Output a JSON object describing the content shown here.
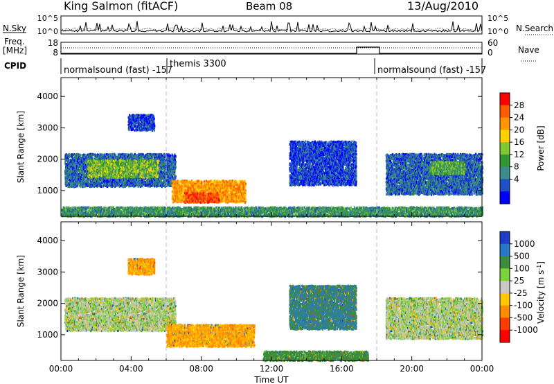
{
  "header": {
    "station": "King Salmon (fitACF)",
    "beam": "Beam 08",
    "date": "13/Aug/2010"
  },
  "top_panels": {
    "nsky_label": "N.Sky",
    "nsky_ticks": [
      "10^5",
      "10^0"
    ],
    "nsearch_label": "N.Search",
    "nsearch_ticks": [
      "10^5",
      "10^0"
    ],
    "freq_label": "Freq.",
    "freq_unit": "[MHz]",
    "freq_ticks": [
      "18",
      "8"
    ],
    "nave_label": "Nave",
    "nave_ticks": [
      "60",
      "0"
    ],
    "cpid_label": "CPID",
    "cpid_segments": [
      {
        "label": "normalsound (fast) -157",
        "start_h": 0,
        "end_h": 6
      },
      {
        "label": "themis 3300",
        "start_h": 6,
        "end_h": 18
      },
      {
        "label": "normalsound (fast) -157",
        "start_h": 18,
        "end_h": 24
      }
    ]
  },
  "power_colorbar": {
    "title": "Power [dB]",
    "ticks": [
      "28",
      "24",
      "20",
      "16",
      "12",
      "8",
      "4"
    ],
    "colors": [
      "#ff0000",
      "#ff5a00",
      "#ff9600",
      "#ffd200",
      "#82c832",
      "#329632",
      "#3c8c8c",
      "#1e50c8",
      "#0000ff"
    ]
  },
  "velocity_colorbar": {
    "title": "Velocity [m s",
    "title_sup": "-1",
    "title_end": "]",
    "ticks": [
      "1000",
      "500",
      "100",
      "25",
      "-25",
      "-100",
      "-500",
      "-1000"
    ],
    "colors": [
      "#1e3cc8",
      "#2878c8",
      "#3c8c3c",
      "#7ad23c",
      "#c8c8c8",
      "#ffc800",
      "#ff8c00",
      "#ff3c00",
      "#ff0000"
    ]
  },
  "chart_data": {
    "type": "heatmap",
    "xlabel": "Time UT",
    "ylabel": "Slant Range [km]",
    "x_ticks": [
      "00:00",
      "04:00",
      "08:00",
      "12:00",
      "16:00",
      "20:00",
      "00:00"
    ],
    "xlim_hours": [
      0,
      24
    ],
    "y_ticks": [
      1000,
      2000,
      3000,
      4000
    ],
    "ylim_km": [
      180,
      4600
    ],
    "mode_change_hours": [
      6,
      18
    ],
    "power_regions": [
      {
        "t0": 0.2,
        "t1": 6.5,
        "r0": 1150,
        "r1": 2200,
        "level": 8
      },
      {
        "t0": 1.5,
        "t1": 5.5,
        "r0": 1450,
        "r1": 2000,
        "level": 16
      },
      {
        "t0": 3.8,
        "t1": 5.3,
        "r0": 2950,
        "r1": 3450,
        "level": 6
      },
      {
        "t0": 6.3,
        "t1": 10.5,
        "r0": 650,
        "r1": 1350,
        "level": 24
      },
      {
        "t0": 7.0,
        "t1": 9.0,
        "r0": 650,
        "r1": 950,
        "level": 28
      },
      {
        "t0": 13.0,
        "t1": 16.8,
        "r0": 1200,
        "r1": 2600,
        "level": 6
      },
      {
        "t0": 18.5,
        "t1": 24.0,
        "r0": 900,
        "r1": 2200,
        "level": 8
      },
      {
        "t0": 21.0,
        "t1": 23.0,
        "r0": 1550,
        "r1": 1950,
        "level": 14
      },
      {
        "t0": 0.0,
        "t1": 24.0,
        "r0": 200,
        "r1": 500,
        "level": 12
      }
    ],
    "velocity_regions": [
      {
        "t0": 0.2,
        "t1": 6.5,
        "r0": 1150,
        "r1": 2200,
        "velocity": 0
      },
      {
        "t0": 3.8,
        "t1": 5.3,
        "r0": 2950,
        "r1": 3450,
        "velocity": -100
      },
      {
        "t0": 6.0,
        "t1": 11.0,
        "r0": 650,
        "r1": 1350,
        "velocity": -100
      },
      {
        "t0": 13.0,
        "t1": 16.8,
        "r0": 1200,
        "r1": 2600,
        "velocity": 100
      },
      {
        "t0": 18.5,
        "t1": 24.0,
        "r0": 900,
        "r1": 2200,
        "velocity": 0
      },
      {
        "t0": 11.5,
        "t1": 17.5,
        "r0": 200,
        "r1": 500,
        "velocity": 50
      }
    ]
  }
}
